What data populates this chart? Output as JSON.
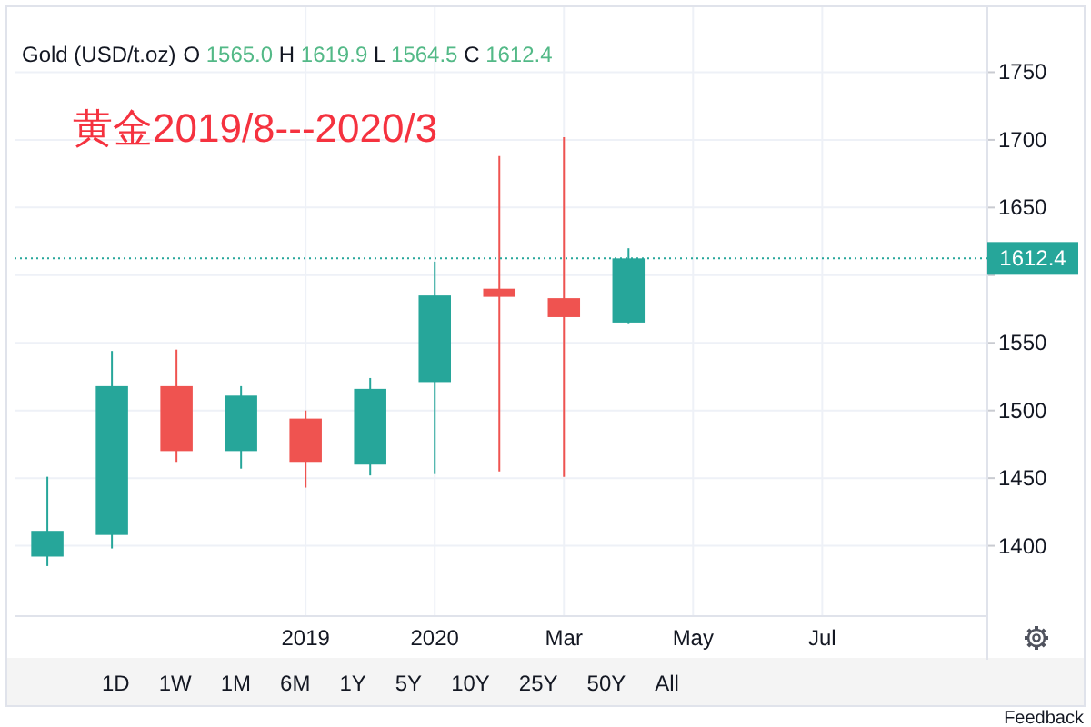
{
  "chart_data": {
    "type": "candlestick",
    "title": "Gold (USD/t.oz)",
    "subtitle": "黄金2019/8---2020/3",
    "annotations": [
      "O 1565.0 H 1619.9 L 1564.5 C 1612.4",
      "1D 1W 1M 6M 1Y 5Y 10Y 25Y 50Y All",
      "Feedback"
    ],
    "x": [
      "2019-07",
      "2019-08",
      "2019-09",
      "2019-10",
      "2019-11",
      "2019-12",
      "2020-01",
      "2020-02",
      "2020-03",
      "2020-04"
    ],
    "ohlc": [
      [
        1392,
        1451,
        1385,
        1411
      ],
      [
        1408,
        1544,
        1398,
        1518
      ],
      [
        1518,
        1545,
        1462,
        1470
      ],
      [
        1470,
        1518,
        1457,
        1511
      ],
      [
        1494,
        1500,
        1443,
        1462
      ],
      [
        1460,
        1524,
        1452,
        1516
      ],
      [
        1521,
        1610,
        1453,
        1585
      ],
      [
        1590,
        1688,
        1455,
        1584
      ],
      [
        1583,
        1702,
        1451,
        1569
      ],
      [
        1565.0,
        1619.9,
        1564.5,
        1612.4
      ]
    ],
    "colors": [
      "#26a69a",
      "#26a69a",
      "#ef5350",
      "#26a69a",
      "#ef5350",
      "#26a69a",
      "#26a69a",
      "#ef5350",
      "#ef5350",
      "#26a69a"
    ],
    "xlim": [
      "2019-06-16",
      "2020-09-18"
    ],
    "xticks": [
      {
        "value": "2019-11",
        "label": "2019"
      },
      {
        "value": "2020-01",
        "label": "2020"
      },
      {
        "value": "2020-03",
        "label": "Mar"
      },
      {
        "value": "2020-05",
        "label": "May"
      },
      {
        "value": "2020-07",
        "label": "Jul"
      }
    ],
    "ylim": [
      1348,
      1798
    ],
    "yticks": [
      1400,
      1450,
      1500,
      1550,
      {
        "value": 1600,
        "label": null
      },
      1650,
      1700,
      1750
    ],
    "ref_lines": [
      {
        "axis": "y",
        "value": 1612.4,
        "label": "1612.4",
        "color": "#26a69a",
        "line_style": "dotted"
      }
    ],
    "grid": true
  }
}
